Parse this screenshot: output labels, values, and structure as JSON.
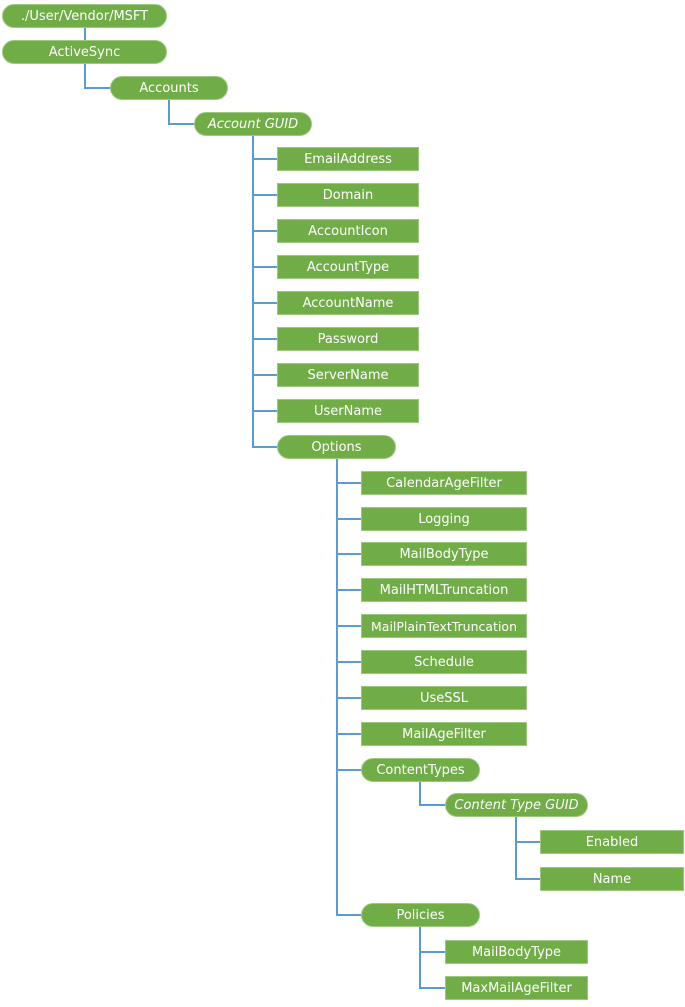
{
  "colors": {
    "node_fill": "#70AD47",
    "connector": "#5B9BD5",
    "text": "#FFFFFF"
  },
  "tree": {
    "root": "./User/Vendor/MSFT",
    "activesync": "ActiveSync",
    "accounts": "Accounts",
    "account_guid": "Account GUID",
    "account_props": [
      "EmailAddress",
      "Domain",
      "AccountIcon",
      "AccountType",
      "AccountName",
      "Password",
      "ServerName",
      "UserName"
    ],
    "options": "Options",
    "option_props": [
      "CalendarAgeFilter",
      "Logging",
      "MailBodyType",
      "MailHTMLTruncation",
      "MailPlainTextTruncation",
      "Schedule",
      "UseSSL",
      "MailAgeFilter"
    ],
    "content_types": "ContentTypes",
    "content_type_guid": "Content Type GUID",
    "content_type_props": [
      "Enabled",
      "Name"
    ],
    "policies": "Policies",
    "policy_props": [
      "MailBodyType",
      "MaxMailAgeFilter"
    ]
  }
}
